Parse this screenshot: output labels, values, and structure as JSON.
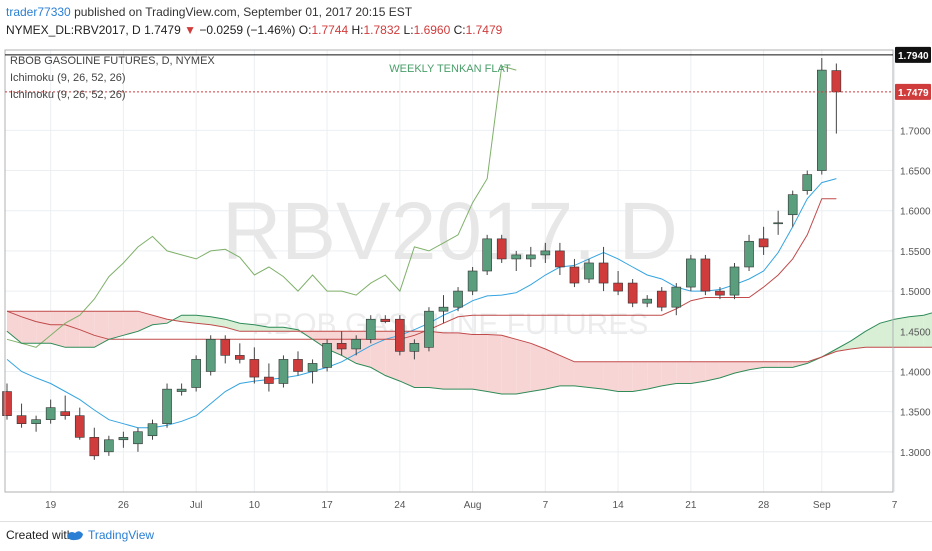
{
  "header": {
    "user": "trader77330",
    "published": "published on TradingView.com, September 01, 2017 20:15 EST",
    "symbol": "NYMEX_DL:RBV2017, D",
    "price": "1.7479",
    "arrow": "▼",
    "change": "−0.0259 (−1.46%)",
    "o_label": "O:",
    "o": "1.7744",
    "h_label": "H:",
    "h": "1.7832",
    "l_label": "L:",
    "l": "1.6960",
    "c_label": "C:",
    "c": "1.7479"
  },
  "footer": {
    "created_with": "Created with",
    "brand": "TradingView"
  },
  "chart_data": {
    "type": "candlestick",
    "title": "RBOB GASOLINE FUTURES, D, NYMEX",
    "watermark": "RBV2017, D",
    "watermark_sub": "RBOB GASOLINE FUTURES",
    "legend": [
      "Ichimoku (9, 26, 52, 26)",
      "Ichimoku (9, 26, 52, 26)"
    ],
    "annotation": "WEEKLY TENKAN FLAT",
    "ylim": [
      1.25,
      1.8
    ],
    "y_ticks": [
      "1.3000",
      "1.3500",
      "1.4000",
      "1.4500",
      "1.5000",
      "1.5500",
      "1.6000",
      "1.6500",
      "1.7000"
    ],
    "x_ticks": [
      {
        "label": "19",
        "i": 3
      },
      {
        "label": "26",
        "i": 8
      },
      {
        "label": "Jul",
        "i": 13
      },
      {
        "label": "10",
        "i": 17
      },
      {
        "label": "17",
        "i": 22
      },
      {
        "label": "24",
        "i": 27
      },
      {
        "label": "Aug",
        "i": 32
      },
      {
        "label": "7",
        "i": 37
      },
      {
        "label": "14",
        "i": 42
      },
      {
        "label": "21",
        "i": 47
      },
      {
        "label": "28",
        "i": 52
      },
      {
        "label": "Sep",
        "i": 56
      },
      {
        "label": "7",
        "i": 61
      }
    ],
    "price_tags": [
      {
        "value": 1.794,
        "label": "1.7940",
        "style": "high"
      },
      {
        "value": 1.7479,
        "label": "1.7479",
        "style": "last"
      }
    ],
    "candles": [
      [
        1.375,
        1.385,
        1.34,
        1.345
      ],
      [
        1.345,
        1.36,
        1.33,
        1.335
      ],
      [
        1.335,
        1.345,
        1.325,
        1.34
      ],
      [
        1.34,
        1.365,
        1.335,
        1.355
      ],
      [
        1.35,
        1.37,
        1.34,
        1.345
      ],
      [
        1.345,
        1.355,
        1.315,
        1.318
      ],
      [
        1.318,
        1.33,
        1.29,
        1.295
      ],
      [
        1.3,
        1.32,
        1.295,
        1.315
      ],
      [
        1.315,
        1.325,
        1.305,
        1.318
      ],
      [
        1.31,
        1.33,
        1.3,
        1.325
      ],
      [
        1.32,
        1.34,
        1.315,
        1.335
      ],
      [
        1.335,
        1.385,
        1.33,
        1.378
      ],
      [
        1.375,
        1.385,
        1.37,
        1.378
      ],
      [
        1.38,
        1.42,
        1.375,
        1.415
      ],
      [
        1.4,
        1.445,
        1.395,
        1.44
      ],
      [
        1.44,
        1.445,
        1.41,
        1.42
      ],
      [
        1.42,
        1.435,
        1.41,
        1.415
      ],
      [
        1.415,
        1.43,
        1.385,
        1.393
      ],
      [
        1.393,
        1.41,
        1.375,
        1.385
      ],
      [
        1.385,
        1.42,
        1.38,
        1.415
      ],
      [
        1.415,
        1.425,
        1.395,
        1.4
      ],
      [
        1.4,
        1.415,
        1.385,
        1.41
      ],
      [
        1.405,
        1.44,
        1.4,
        1.435
      ],
      [
        1.435,
        1.45,
        1.42,
        1.428
      ],
      [
        1.428,
        1.445,
        1.42,
        1.44
      ],
      [
        1.44,
        1.47,
        1.435,
        1.465
      ],
      [
        1.465,
        1.47,
        1.46,
        1.462
      ],
      [
        1.465,
        1.47,
        1.42,
        1.425
      ],
      [
        1.425,
        1.44,
        1.415,
        1.435
      ],
      [
        1.43,
        1.48,
        1.425,
        1.475
      ],
      [
        1.475,
        1.495,
        1.46,
        1.48
      ],
      [
        1.48,
        1.505,
        1.475,
        1.5
      ],
      [
        1.5,
        1.53,
        1.495,
        1.525
      ],
      [
        1.525,
        1.57,
        1.52,
        1.565
      ],
      [
        1.565,
        1.57,
        1.535,
        1.54
      ],
      [
        1.54,
        1.55,
        1.525,
        1.545
      ],
      [
        1.54,
        1.555,
        1.53,
        1.545
      ],
      [
        1.545,
        1.56,
        1.535,
        1.55
      ],
      [
        1.55,
        1.56,
        1.52,
        1.53
      ],
      [
        1.53,
        1.54,
        1.505,
        1.51
      ],
      [
        1.515,
        1.54,
        1.51,
        1.535
      ],
      [
        1.535,
        1.555,
        1.5,
        1.51
      ],
      [
        1.51,
        1.525,
        1.495,
        1.5
      ],
      [
        1.51,
        1.515,
        1.48,
        1.485
      ],
      [
        1.485,
        1.495,
        1.48,
        1.49
      ],
      [
        1.5,
        1.505,
        1.475,
        1.48
      ],
      [
        1.48,
        1.51,
        1.47,
        1.505
      ],
      [
        1.505,
        1.545,
        1.5,
        1.54
      ],
      [
        1.54,
        1.545,
        1.495,
        1.5
      ],
      [
        1.5,
        1.505,
        1.49,
        1.495
      ],
      [
        1.495,
        1.535,
        1.49,
        1.53
      ],
      [
        1.53,
        1.57,
        1.525,
        1.562
      ],
      [
        1.565,
        1.58,
        1.545,
        1.555
      ],
      [
        1.585,
        1.6,
        1.57,
        1.585
      ],
      [
        1.595,
        1.625,
        1.58,
        1.62
      ],
      [
        1.625,
        1.65,
        1.62,
        1.645
      ],
      [
        1.65,
        1.79,
        1.645,
        1.775
      ],
      [
        1.7744,
        1.7832,
        1.696,
        1.7479
      ]
    ],
    "series": [
      {
        "name": "Tenkan-sen",
        "color": "#34a4e0",
        "values": [
          1.415,
          1.4,
          1.392,
          1.385,
          1.375,
          1.365,
          1.352,
          1.34,
          1.335,
          1.33,
          1.33,
          1.333,
          1.338,
          1.345,
          1.36,
          1.375,
          1.385,
          1.388,
          1.39,
          1.392,
          1.395,
          1.4,
          1.405,
          1.412,
          1.422,
          1.432,
          1.44,
          1.445,
          1.452,
          1.46,
          1.47,
          1.478,
          1.488,
          1.494,
          1.495,
          1.498,
          1.508,
          1.52,
          1.53,
          1.532,
          1.54,
          1.548,
          1.54,
          1.53,
          1.52,
          1.515,
          1.505,
          1.5,
          1.5,
          1.502,
          1.508,
          1.515,
          1.525,
          1.548,
          1.58,
          1.615,
          1.635,
          1.64
        ]
      },
      {
        "name": "Kijun-sen",
        "color": "#c04a4a",
        "values": [
          1.475,
          1.468,
          1.462,
          1.458,
          1.458,
          1.452,
          1.445,
          1.44,
          1.44,
          1.44,
          1.44,
          1.44,
          1.44,
          1.44,
          1.44,
          1.44,
          1.44,
          1.44,
          1.44,
          1.44,
          1.44,
          1.44,
          1.44,
          1.44,
          1.44,
          1.44,
          1.44,
          1.44,
          1.445,
          1.452,
          1.46,
          1.468,
          1.47,
          1.47,
          1.47,
          1.47,
          1.47,
          1.47,
          1.47,
          1.47,
          1.47,
          1.47,
          1.47,
          1.47,
          1.47,
          1.47,
          1.478,
          1.488,
          1.492,
          1.492,
          1.492,
          1.492,
          1.505,
          1.52,
          1.54,
          1.57,
          1.615,
          1.615
        ]
      },
      {
        "name": "Chikou Span",
        "color": "#7fb06a",
        "values": [
          1.44,
          1.435,
          1.43,
          1.445,
          1.46,
          1.47,
          1.49,
          1.518,
          1.535,
          1.555,
          1.568,
          1.55,
          1.545,
          1.54,
          1.55,
          1.552,
          1.542,
          1.52,
          1.53,
          1.518,
          1.5,
          1.52,
          1.5,
          1.5,
          1.495,
          1.51,
          1.52,
          1.5,
          1.555,
          1.55,
          1.56,
          1.57,
          1.61,
          1.64,
          1.78,
          1.775
        ]
      },
      {
        "name": "Senkou Span A",
        "color": "#2e8b57",
        "values": [
          1.45,
          1.435,
          1.435,
          1.435,
          1.43,
          1.43,
          1.43,
          1.44,
          1.445,
          1.45,
          1.458,
          1.46,
          1.47,
          1.47,
          1.468,
          1.465,
          1.46,
          1.458,
          1.455,
          1.455,
          1.452,
          1.44,
          1.428,
          1.42,
          1.41,
          1.405,
          1.395,
          1.388,
          1.38,
          1.38,
          1.378,
          1.378,
          1.378,
          1.375,
          1.372,
          1.372,
          1.375,
          1.378,
          1.382,
          1.382,
          1.38,
          1.378,
          1.375,
          1.375,
          1.378,
          1.382,
          1.385,
          1.385,
          1.388,
          1.392,
          1.398,
          1.402,
          1.405,
          1.405,
          1.405,
          1.41,
          1.418,
          1.428,
          1.438,
          1.45,
          1.46,
          1.465,
          1.468,
          1.47,
          1.475,
          1.48,
          1.485,
          1.49,
          1.495
        ]
      },
      {
        "name": "Senkou Span B",
        "color": "#c04a4a",
        "values": [
          1.475,
          1.475,
          1.475,
          1.475,
          1.475,
          1.475,
          1.475,
          1.475,
          1.475,
          1.475,
          1.47,
          1.465,
          1.462,
          1.46,
          1.458,
          1.455,
          1.45,
          1.45,
          1.45,
          1.45,
          1.45,
          1.45,
          1.45,
          1.45,
          1.45,
          1.45,
          1.45,
          1.45,
          1.45,
          1.45,
          1.448,
          1.448,
          1.446,
          1.446,
          1.445,
          1.44,
          1.435,
          1.428,
          1.42,
          1.412,
          1.412,
          1.412,
          1.412,
          1.412,
          1.412,
          1.412,
          1.412,
          1.412,
          1.412,
          1.412,
          1.412,
          1.412,
          1.412,
          1.412,
          1.412,
          1.412,
          1.418,
          1.425,
          1.428,
          1.43,
          1.43,
          1.43,
          1.43,
          1.43,
          1.43,
          1.43,
          1.43,
          1.43,
          1.43
        ]
      }
    ],
    "colors": {
      "up": "#5a9e7e",
      "down": "#d03b3b",
      "cloud_bear": "#f8d5d5",
      "cloud_bull": "#d8efd6",
      "grid": "#eceff2"
    }
  }
}
